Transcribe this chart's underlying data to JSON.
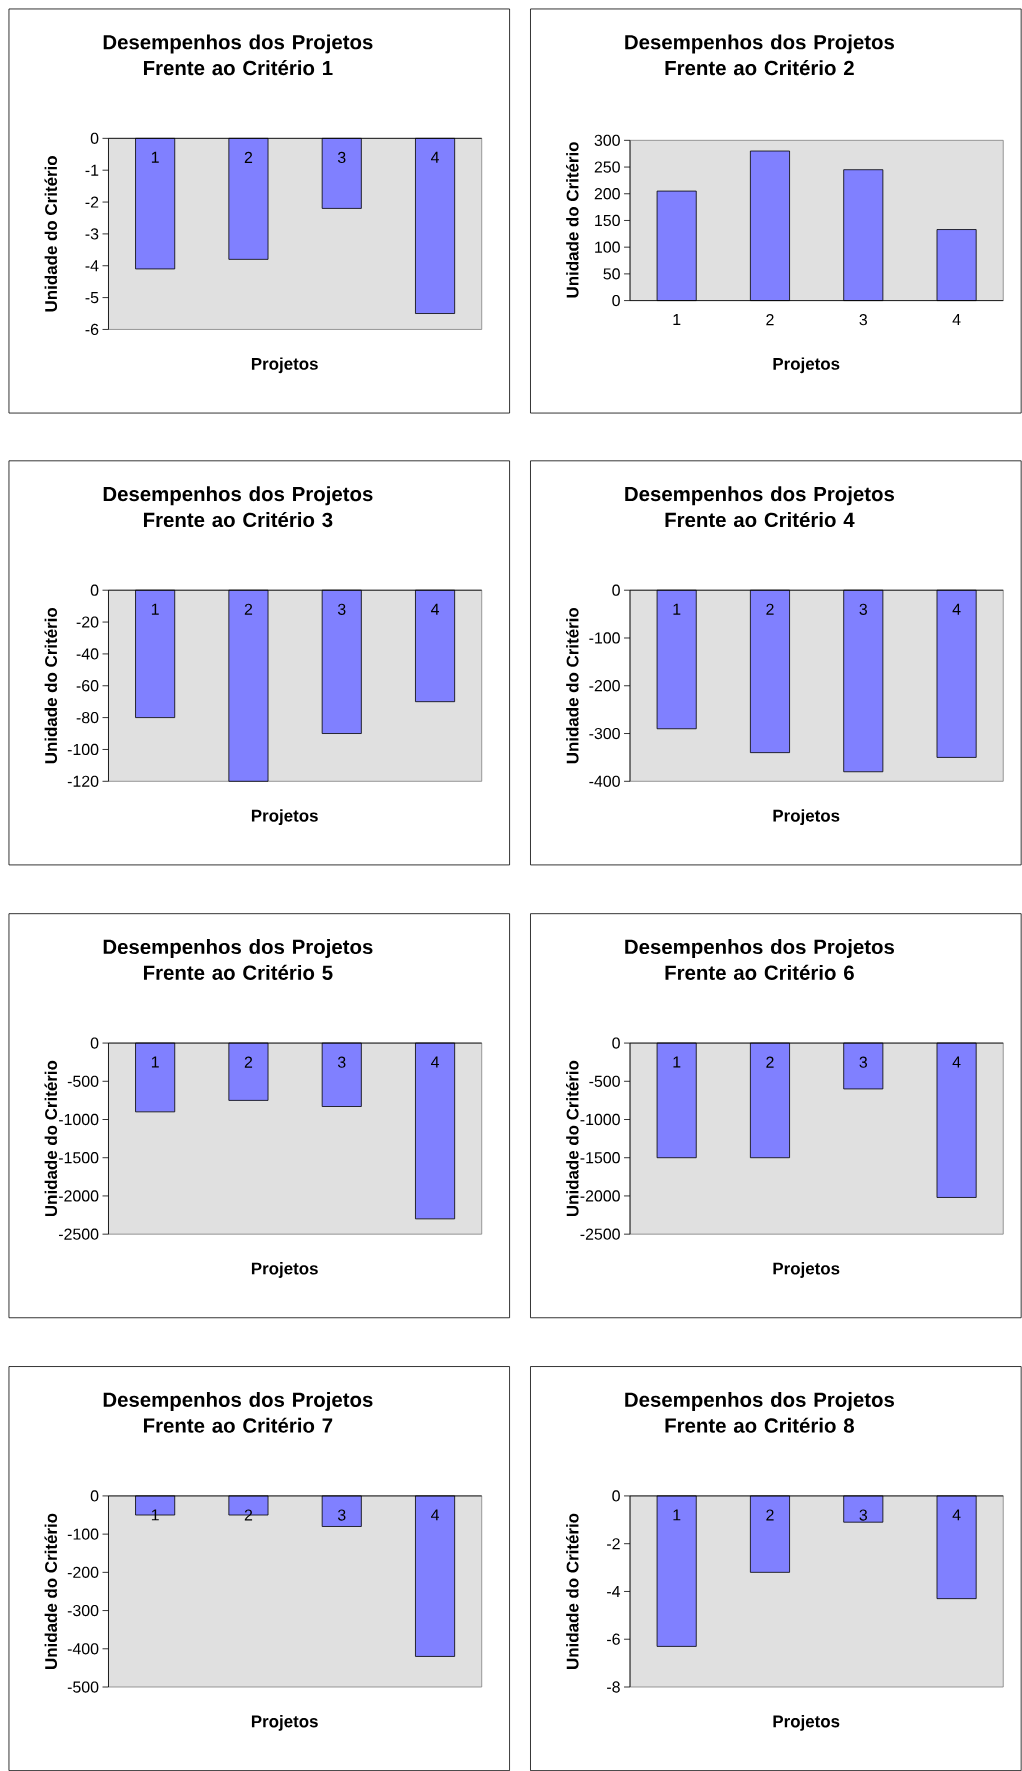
{
  "chart_data": [
    {
      "type": "bar",
      "title": "Desempenhos dos Projetos Frente ao Critério 1",
      "xlabel": "Projetos",
      "ylabel": "Unidade do Critério",
      "categories": [
        "1",
        "2",
        "3",
        "4"
      ],
      "values": [
        -4.1,
        -3.8,
        -2.2,
        -5.5
      ],
      "color": "#8080ff",
      "ylim": [
        -6,
        0
      ],
      "yticks": [
        -6,
        -5,
        -4,
        -3,
        -2,
        -1,
        0
      ]
    },
    {
      "type": "bar",
      "title": "Desempenhos dos Projetos Frente ao Critério 2",
      "xlabel": "Projetos",
      "ylabel": "Unidade do Critério",
      "categories": [
        "1",
        "2",
        "3",
        "4"
      ],
      "values": [
        205,
        280,
        245,
        133
      ],
      "color": "#8080ff",
      "ylim": [
        0,
        300
      ],
      "yticks": [
        0,
        50,
        100,
        150,
        200,
        250,
        300
      ]
    },
    {
      "type": "bar",
      "title": "Desempenhos dos Projetos Frente ao Critério 3",
      "xlabel": "Projetos",
      "ylabel": "Unidade do Critério",
      "categories": [
        "1",
        "2",
        "3",
        "4"
      ],
      "values": [
        -80,
        -120,
        -90,
        -70
      ],
      "color": "#8080ff",
      "ylim": [
        -120,
        0
      ],
      "yticks": [
        -120,
        -100,
        -80,
        -60,
        -40,
        -20,
        0
      ]
    },
    {
      "type": "bar",
      "title": "Desempenhos dos Projetos Frente ao Critério 4",
      "xlabel": "Projetos",
      "ylabel": "Unidade do Critério",
      "categories": [
        "1",
        "2",
        "3",
        "4"
      ],
      "values": [
        -290,
        -340,
        -380,
        -350
      ],
      "color": "#8080ff",
      "ylim": [
        -400,
        0
      ],
      "yticks": [
        -400,
        -300,
        -200,
        -100,
        0
      ]
    },
    {
      "type": "bar",
      "title": "Desempenhos dos Projetos Frente ao Critério 5",
      "xlabel": "Projetos",
      "ylabel": "Unidade do Critério",
      "categories": [
        "1",
        "2",
        "3",
        "4"
      ],
      "values": [
        -900,
        -750,
        -830,
        -2300
      ],
      "color": "#8080ff",
      "ylim": [
        -2500,
        0
      ],
      "yticks": [
        -2500,
        -2000,
        -1500,
        -1000,
        -500,
        0
      ]
    },
    {
      "type": "bar",
      "title": "Desempenhos dos Projetos Frente ao Critério 6",
      "xlabel": "Projetos",
      "ylabel": "Unidade do Critério",
      "categories": [
        "1",
        "2",
        "3",
        "4"
      ],
      "values": [
        -1500,
        -1500,
        -600,
        -2020
      ],
      "color": "#8080ff",
      "ylim": [
        -2500,
        0
      ],
      "yticks": [
        -2500,
        -2000,
        -1500,
        -1000,
        -500,
        0
      ]
    },
    {
      "type": "bar",
      "title": "Desempenhos dos Projetos Frente ao Critério 7",
      "xlabel": "Projetos",
      "ylabel": "Unidade do Critério",
      "categories": [
        "1",
        "2",
        "3",
        "4"
      ],
      "values": [
        -50,
        -50,
        -80,
        -420
      ],
      "color": "#8080ff",
      "ylim": [
        -500,
        0
      ],
      "yticks": [
        -500,
        -400,
        -300,
        -200,
        -100,
        0
      ]
    },
    {
      "type": "bar",
      "title": "Desempenhos dos Projetos Frente ao Critério 8",
      "xlabel": "Projetos",
      "ylabel": "Unidade do Critério",
      "categories": [
        "1",
        "2",
        "3",
        "4"
      ],
      "values": [
        -6.3,
        -3.2,
        -1.1,
        -4.3
      ],
      "color": "#8080ff",
      "ylim": [
        -8,
        0
      ],
      "yticks": [
        -8,
        -6,
        -4,
        -2,
        0
      ]
    }
  ]
}
